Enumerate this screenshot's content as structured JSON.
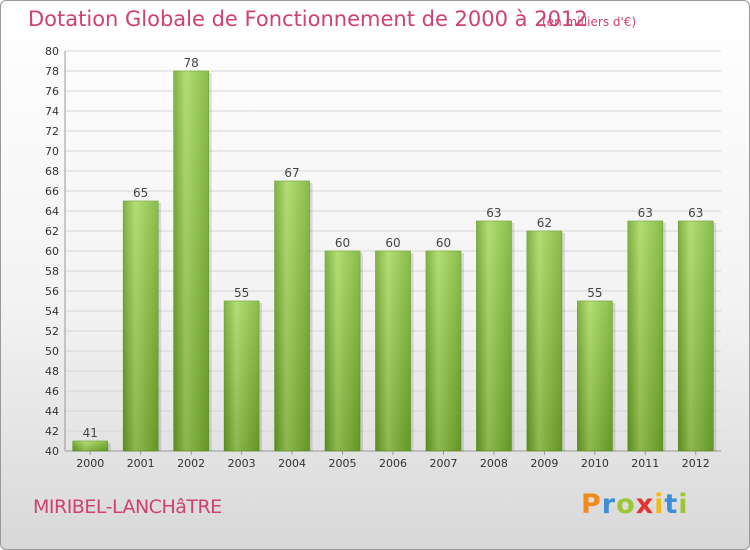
{
  "header": {
    "title": "Dotation Globale de Fonctionnement de 2000 à 2012",
    "subtitle": "(en milliers d'€)"
  },
  "footer": {
    "commune": "MIRIBEL-LANCHâTRE",
    "logo": "Proxiti"
  },
  "chart_data": {
    "type": "bar",
    "title": "Dotation Globale de Fonctionnement de 2000 à 2012",
    "subtitle": "(en milliers d'€)",
    "categories": [
      "2000",
      "2001",
      "2002",
      "2003",
      "2004",
      "2005",
      "2006",
      "2007",
      "2008",
      "2009",
      "2010",
      "2011",
      "2012"
    ],
    "values": [
      41,
      65,
      78,
      55,
      67,
      60,
      60,
      60,
      63,
      62,
      55,
      63,
      63
    ],
    "ylim": [
      40,
      80
    ],
    "ytick_step": 2,
    "grid": "horizontal",
    "legend": "none",
    "bar_color": "#7db72f",
    "bar_color_light": "#a4d65a"
  }
}
